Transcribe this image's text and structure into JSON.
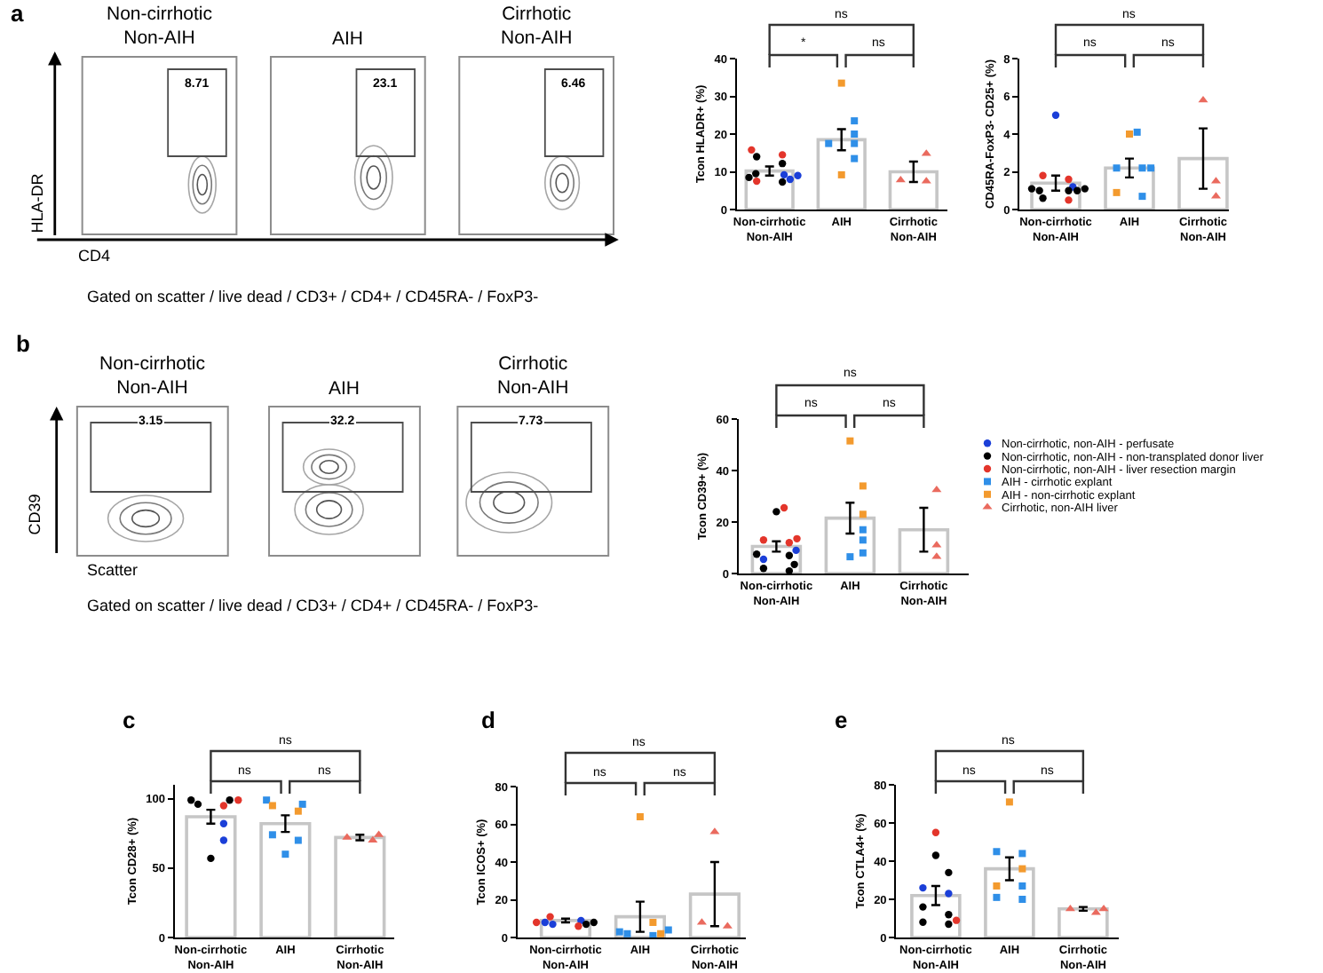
{
  "chart_data": [
    {
      "type": "other",
      "title": "a",
      "categories": [
        "Non-cirrhotic\nNon-AIH",
        "AIH",
        "Cirrhotic\nNon-AIH"
      ],
      "values": [
        8.71,
        23.1,
        6.46
      ],
      "data_labels": true,
      "xlabel": "CD4",
      "ylabel": "HLA-DR",
      "annotations": [
        "Gated on scatter / live dead / CD3+ / CD4+ / CD45RA- / FoxP3-"
      ]
    },
    {
      "type": "bar",
      "ylabel": "Tcon HLADR+ (%)",
      "categories": [
        "Non-cirrhotic\nNon-AIH",
        "AIH",
        "Cirrhotic\nNon-AIH"
      ],
      "ylim": [
        0,
        40
      ],
      "yticks": [
        0,
        10,
        20,
        30,
        40
      ],
      "annotations": [
        "*",
        "ns",
        "ns"
      ],
      "series": [
        {
          "type": "bar",
          "color": "#c6c6c6",
          "values": [
            10.2,
            18.5,
            10.0
          ],
          "errors": [
            1.2,
            2.8,
            2.7
          ]
        },
        {
          "type": "scatter",
          "marker": "circle",
          "color": "#1b3fd8",
          "x": [
            "Non-cirrhotic\nNon-AIH",
            "Non-cirrhotic\nNon-AIH",
            "Non-cirrhotic\nNon-AIH"
          ],
          "values": [
            9.0,
            8.0,
            9.2
          ]
        },
        {
          "type": "scatter",
          "marker": "circle",
          "color": "#000000",
          "x": [
            "Non-cirrhotic\nNon-AIH",
            "Non-cirrhotic\nNon-AIH",
            "Non-cirrhotic\nNon-AIH",
            "Non-cirrhotic\nNon-AIH",
            "Non-cirrhotic\nNon-AIH"
          ],
          "values": [
            14.0,
            12.2,
            9.5,
            8.5,
            7.3
          ]
        },
        {
          "type": "scatter",
          "marker": "circle",
          "color": "#e3352b",
          "x": [
            "Non-cirrhotic\nNon-AIH",
            "Non-cirrhotic\nNon-AIH",
            "Non-cirrhotic\nNon-AIH"
          ],
          "values": [
            7.5,
            15.8,
            14.5
          ]
        },
        {
          "type": "scatter",
          "marker": "square",
          "color": "#2f8fe8",
          "x": [
            "AIH",
            "AIH",
            "AIH",
            "AIH",
            "AIH"
          ],
          "values": [
            23.5,
            20.0,
            17.5,
            17.5,
            13.5
          ]
        },
        {
          "type": "scatter",
          "marker": "square",
          "color": "#f39a2e",
          "x": [
            "AIH",
            "AIH"
          ],
          "values": [
            33.5,
            9.2
          ]
        },
        {
          "type": "scatter",
          "marker": "triangle",
          "color": "#ea6a5e",
          "x": [
            "Cirrhotic\nNon-AIH",
            "Cirrhotic\nNon-AIH",
            "Cirrhotic\nNon-AIH"
          ],
          "values": [
            14.8,
            7.5,
            7.8
          ]
        }
      ]
    },
    {
      "type": "bar",
      "ylabel": "CD45RA-FoxP3- CD25+ (%)",
      "categories": [
        "Non-cirrhotic\nNon-AIH",
        "AIH",
        "Cirrhotic\nNon-AIH"
      ],
      "ylim": [
        0,
        8
      ],
      "yticks": [
        0,
        2,
        4,
        6,
        8
      ],
      "annotations": [
        "ns",
        "ns",
        "ns"
      ],
      "series": [
        {
          "type": "bar",
          "color": "#c6c6c6",
          "values": [
            1.4,
            2.2,
            2.7
          ],
          "errors": [
            0.4,
            0.5,
            1.6
          ]
        },
        {
          "type": "scatter",
          "marker": "circle",
          "color": "#1b3fd8",
          "x": [
            "Non-cirrhotic\nNon-AIH",
            "Non-cirrhotic\nNon-AIH"
          ],
          "values": [
            5.0,
            1.2
          ]
        },
        {
          "type": "scatter",
          "marker": "circle",
          "color": "#000000",
          "x": [
            "Non-cirrhotic\nNon-AIH",
            "Non-cirrhotic\nNon-AIH",
            "Non-cirrhotic\nNon-AIH",
            "Non-cirrhotic\nNon-AIH",
            "Non-cirrhotic\nNon-AIH",
            "Non-cirrhotic\nNon-AIH"
          ],
          "values": [
            1.1,
            1.0,
            1.0,
            1.1,
            1.0,
            0.6
          ]
        },
        {
          "type": "scatter",
          "marker": "circle",
          "color": "#e3352b",
          "x": [
            "Non-cirrhotic\nNon-AIH",
            "Non-cirrhotic\nNon-AIH",
            "Non-cirrhotic\nNon-AIH"
          ],
          "values": [
            0.5,
            1.6,
            1.8
          ]
        },
        {
          "type": "scatter",
          "marker": "square",
          "color": "#2f8fe8",
          "x": [
            "AIH",
            "AIH",
            "AIH",
            "AIH",
            "AIH"
          ],
          "values": [
            4.1,
            2.2,
            2.2,
            2.2,
            0.7
          ]
        },
        {
          "type": "scatter",
          "marker": "square",
          "color": "#f39a2e",
          "x": [
            "AIH",
            "AIH"
          ],
          "values": [
            4.0,
            0.9
          ]
        },
        {
          "type": "scatter",
          "marker": "triangle",
          "color": "#ea6a5e",
          "x": [
            "Cirrhotic\nNon-AIH",
            "Cirrhotic\nNon-AIH",
            "Cirrhotic\nNon-AIH"
          ],
          "values": [
            5.8,
            1.5,
            0.7
          ]
        }
      ]
    },
    {
      "type": "other",
      "title": "b",
      "categories": [
        "Non-cirrhotic\nNon-AIH",
        "AIH",
        "Cirrhotic\nNon-AIH"
      ],
      "values": [
        3.15,
        32.2,
        7.73
      ],
      "data_labels": true,
      "xlabel": "Scatter",
      "ylabel": "CD39",
      "annotations": [
        "Gated on scatter / live dead / CD3+ / CD4+ / CD45RA- / FoxP3-"
      ]
    },
    {
      "type": "bar",
      "ylabel": "Tcon CD39+ (%)",
      "categories": [
        "Non-cirrhotic\nNon-AIH",
        "AIH",
        "Cirrhotic\nNon-AIH"
      ],
      "ylim": [
        0,
        60
      ],
      "yticks": [
        0,
        20,
        40,
        60
      ],
      "legend": "right",
      "annotations": [
        "ns",
        "ns",
        "ns"
      ],
      "series": [
        {
          "type": "bar",
          "color": "#c6c6c6",
          "values": [
            10.5,
            21.5,
            17
          ],
          "errors": [
            2,
            6,
            8.5
          ]
        },
        {
          "type": "scatter",
          "name": "Non-cirrhotic, non-AIH - perfusate",
          "marker": "circle",
          "color": "#1b3fd8",
          "x": [
            "Non-cirrhotic\nNon-AIH",
            "Non-cirrhotic\nNon-AIH"
          ],
          "values": [
            9,
            5.5
          ]
        },
        {
          "type": "scatter",
          "name": "Non-cirrhotic, non-AIH - non-transplated donor liver",
          "marker": "circle",
          "color": "#000000",
          "x": [
            "Non-cirrhotic\nNon-AIH",
            "Non-cirrhotic\nNon-AIH",
            "Non-cirrhotic\nNon-AIH",
            "Non-cirrhotic\nNon-AIH",
            "Non-cirrhotic\nNon-AIH",
            "Non-cirrhotic\nNon-AIH"
          ],
          "values": [
            24,
            7,
            7.5,
            3.5,
            2,
            1
          ]
        },
        {
          "type": "scatter",
          "name": "Non-cirrhotic, non-AIH - liver resection margin",
          "marker": "circle",
          "color": "#e3352b",
          "x": [
            "Non-cirrhotic\nNon-AIH",
            "Non-cirrhotic\nNon-AIH",
            "Non-cirrhotic\nNon-AIH",
            "Non-cirrhotic\nNon-AIH"
          ],
          "values": [
            25.5,
            13.5,
            13,
            12
          ]
        },
        {
          "type": "scatter",
          "name": "AIH - cirrhotic explant",
          "marker": "square",
          "color": "#2f8fe8",
          "x": [
            "AIH",
            "AIH",
            "AIH",
            "AIH"
          ],
          "values": [
            17,
            13,
            8,
            6.5
          ]
        },
        {
          "type": "scatter",
          "name": "AIH - non-cirrhotic explant",
          "marker": "square",
          "color": "#f39a2e",
          "x": [
            "AIH",
            "AIH",
            "AIH"
          ],
          "values": [
            51.5,
            34,
            23
          ]
        },
        {
          "type": "scatter",
          "name": "Cirrhotic, non-AIH liver",
          "marker": "triangle",
          "color": "#ea6a5e",
          "x": [
            "Cirrhotic\nNon-AIH",
            "Cirrhotic\nNon-AIH",
            "Cirrhotic\nNon-AIH"
          ],
          "values": [
            32.5,
            11,
            6.5
          ]
        }
      ]
    },
    {
      "type": "bar",
      "title": "c",
      "ylabel": "Tcon CD28+ (%)",
      "categories": [
        "Non-cirrhotic\nNon-AIH",
        "AIH",
        "Cirrhotic\nNon-AIH"
      ],
      "ylim": [
        0,
        110
      ],
      "yticks": [
        0,
        50,
        100
      ],
      "annotations": [
        "ns",
        "ns",
        "ns"
      ],
      "series": [
        {
          "type": "bar",
          "color": "#c6c6c6",
          "values": [
            87,
            82,
            72
          ],
          "errors": [
            5,
            6,
            2
          ]
        },
        {
          "type": "scatter",
          "marker": "circle",
          "color": "#1b3fd8",
          "x": [
            "Non-cirrhotic\nNon-AIH",
            "Non-cirrhotic\nNon-AIH"
          ],
          "values": [
            82,
            70
          ]
        },
        {
          "type": "scatter",
          "marker": "circle",
          "color": "#000000",
          "x": [
            "Non-cirrhotic\nNon-AIH",
            "Non-cirrhotic\nNon-AIH",
            "Non-cirrhotic\nNon-AIH",
            "Non-cirrhotic\nNon-AIH"
          ],
          "values": [
            99,
            99,
            96,
            57
          ]
        },
        {
          "type": "scatter",
          "marker": "circle",
          "color": "#e3352b",
          "x": [
            "Non-cirrhotic\nNon-AIH",
            "Non-cirrhotic\nNon-AIH"
          ],
          "values": [
            95,
            99
          ]
        },
        {
          "type": "scatter",
          "marker": "square",
          "color": "#2f8fe8",
          "x": [
            "AIH",
            "AIH",
            "AIH",
            "AIH",
            "AIH"
          ],
          "values": [
            96,
            99,
            70,
            74,
            60
          ]
        },
        {
          "type": "scatter",
          "marker": "square",
          "color": "#f39a2e",
          "x": [
            "AIH",
            "AIH"
          ],
          "values": [
            95,
            91
          ]
        },
        {
          "type": "scatter",
          "marker": "triangle",
          "color": "#ea6a5e",
          "x": [
            "Cirrhotic\nNon-AIH",
            "Cirrhotic\nNon-AIH",
            "Cirrhotic\nNon-AIH"
          ],
          "values": [
            74,
            70,
            72
          ]
        }
      ]
    },
    {
      "type": "bar",
      "title": "d",
      "ylabel": "Tcon ICOS+ (%)",
      "categories": [
        "Non-cirrhotic\nNon-AIH",
        "AIH",
        "Cirrhotic\nNon-AIH"
      ],
      "ylim": [
        0,
        80
      ],
      "yticks": [
        0,
        20,
        40,
        60,
        80
      ],
      "annotations": [
        "ns",
        "ns",
        "ns"
      ],
      "series": [
        {
          "type": "bar",
          "color": "#c6c6c6",
          "values": [
            9,
            11,
            23
          ],
          "errors": [
            1,
            8,
            17
          ]
        },
        {
          "type": "scatter",
          "marker": "circle",
          "color": "#1b3fd8",
          "x": [
            "Non-cirrhotic\nNon-AIH",
            "Non-cirrhotic\nNon-AIH",
            "Non-cirrhotic\nNon-AIH"
          ],
          "values": [
            9,
            8,
            7
          ]
        },
        {
          "type": "scatter",
          "marker": "circle",
          "color": "#000000",
          "x": [
            "Non-cirrhotic\nNon-AIH",
            "Non-cirrhotic\nNon-AIH"
          ],
          "values": [
            7,
            8
          ]
        },
        {
          "type": "scatter",
          "marker": "circle",
          "color": "#e3352b",
          "x": [
            "Non-cirrhotic\nNon-AIH",
            "Non-cirrhotic\nNon-AIH",
            "Non-cirrhotic\nNon-AIH"
          ],
          "values": [
            11,
            8,
            6
          ]
        },
        {
          "type": "scatter",
          "marker": "square",
          "color": "#2f8fe8",
          "x": [
            "AIH",
            "AIH",
            "AIH",
            "AIH"
          ],
          "values": [
            3,
            2,
            4,
            1
          ]
        },
        {
          "type": "scatter",
          "marker": "square",
          "color": "#f39a2e",
          "x": [
            "AIH",
            "AIH",
            "AIH"
          ],
          "values": [
            64,
            2,
            8
          ]
        },
        {
          "type": "scatter",
          "marker": "triangle",
          "color": "#ea6a5e",
          "x": [
            "Cirrhotic\nNon-AIH",
            "Cirrhotic\nNon-AIH",
            "Cirrhotic\nNon-AIH"
          ],
          "values": [
            56,
            6,
            8
          ]
        }
      ]
    },
    {
      "type": "bar",
      "title": "e",
      "ylabel": "Tcon CTLA4+ (%)",
      "categories": [
        "Non-cirrhotic\nNon-AIH",
        "AIH",
        "Cirrhotic\nNon-AIH"
      ],
      "ylim": [
        0,
        80
      ],
      "yticks": [
        0,
        20,
        40,
        60,
        80
      ],
      "annotations": [
        "ns",
        "ns",
        "ns"
      ],
      "series": [
        {
          "type": "bar",
          "color": "#c6c6c6",
          "values": [
            22,
            36,
            15
          ],
          "errors": [
            5,
            6,
            1
          ]
        },
        {
          "type": "scatter",
          "marker": "circle",
          "color": "#1b3fd8",
          "x": [
            "Non-cirrhotic\nNon-AIH",
            "Non-cirrhotic\nNon-AIH"
          ],
          "values": [
            26,
            23
          ]
        },
        {
          "type": "scatter",
          "marker": "circle",
          "color": "#000000",
          "x": [
            "Non-cirrhotic\nNon-AIH",
            "Non-cirrhotic\nNon-AIH",
            "Non-cirrhotic\nNon-AIH",
            "Non-cirrhotic\nNon-AIH",
            "Non-cirrhotic\nNon-AIH",
            "Non-cirrhotic\nNon-AIH"
          ],
          "values": [
            43,
            34,
            16,
            12,
            7,
            8
          ]
        },
        {
          "type": "scatter",
          "marker": "circle",
          "color": "#e3352b",
          "x": [
            "Non-cirrhotic\nNon-AIH",
            "Non-cirrhotic\nNon-AIH"
          ],
          "values": [
            55,
            9
          ]
        },
        {
          "type": "scatter",
          "marker": "square",
          "color": "#2f8fe8",
          "x": [
            "AIH",
            "AIH",
            "AIH",
            "AIH",
            "AIH"
          ],
          "values": [
            45,
            44,
            27,
            20,
            21
          ]
        },
        {
          "type": "scatter",
          "marker": "square",
          "color": "#f39a2e",
          "x": [
            "AIH",
            "AIH",
            "AIH"
          ],
          "values": [
            71,
            36,
            27
          ]
        },
        {
          "type": "scatter",
          "marker": "triangle",
          "color": "#ea6a5e",
          "x": [
            "Cirrhotic\nNon-AIH",
            "Cirrhotic\nNon-AIH",
            "Cirrhotic\nNon-AIH"
          ],
          "values": [
            13,
            15,
            15
          ]
        }
      ]
    }
  ]
}
